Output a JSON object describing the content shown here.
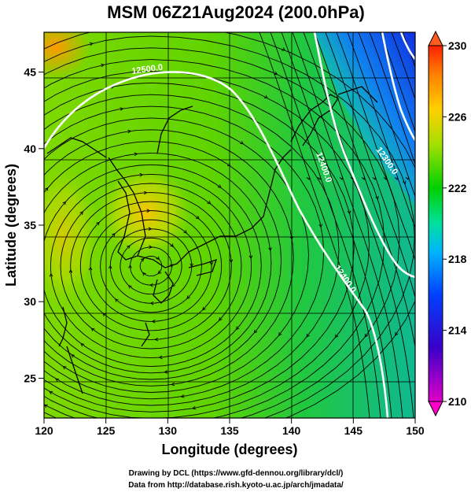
{
  "title": "MSM 06Z21Aug2024 (200.0hPa)",
  "x_axis": {
    "label": "Longitude (degrees)",
    "ticks": [
      "120",
      "125",
      "130",
      "135",
      "140",
      "145",
      "150"
    ],
    "range": [
      120,
      150
    ]
  },
  "y_axis": {
    "label": "Latitude  (degrees)",
    "ticks": [
      "25",
      "30",
      "35",
      "40",
      "45"
    ],
    "range": [
      22.4,
      47.6
    ]
  },
  "colorbar": {
    "ticks": [
      "210",
      "214",
      "218",
      "222",
      "226",
      "230"
    ],
    "range": [
      210,
      230
    ]
  },
  "contours": [
    {
      "label": "12500.0"
    },
    {
      "label": "12400.0"
    },
    {
      "label": "12300.0"
    },
    {
      "label": "12400.0"
    }
  ],
  "credits": {
    "line1": "Drawing by DCL (https://www.gfd-dennou.org/library/dcl/)",
    "line2": "Data from http://database.rish.kyoto-u.ac.jp/arch/jmadata/"
  }
}
